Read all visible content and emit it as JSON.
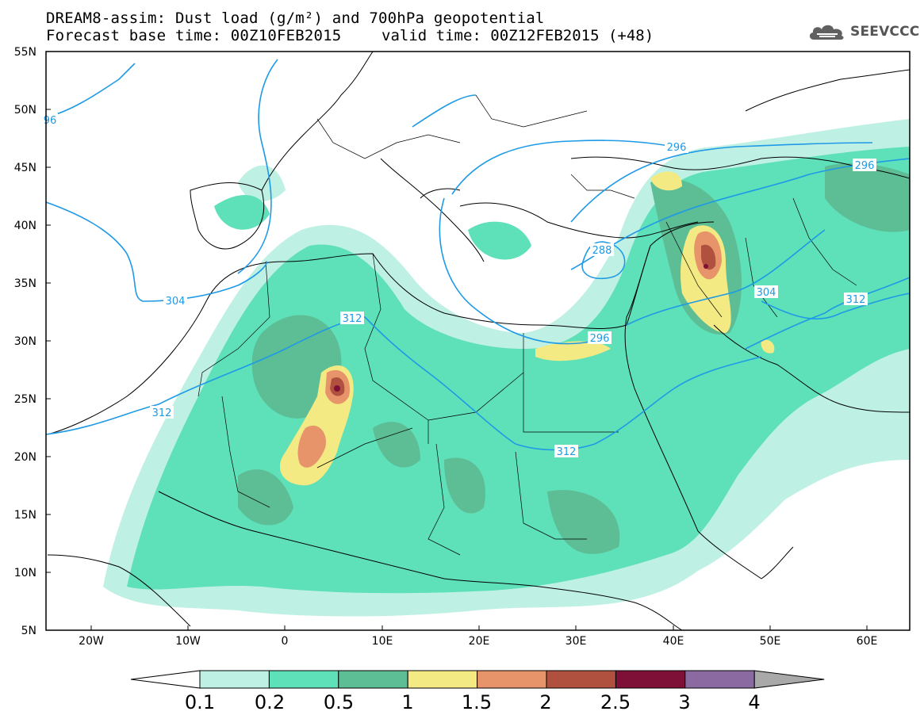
{
  "header": {
    "title_line1": "DREAM8-assim: Dust load (g/m²) and 700hPa geopotential",
    "title_line2_left": "Forecast base time: 00Z10FEB2015",
    "title_line2_right": "valid time: 00Z12FEB2015 (+48)",
    "logo_text": "SEEVCCC"
  },
  "map": {
    "lat_labels": [
      "55N",
      "50N",
      "45N",
      "40N",
      "35N",
      "30N",
      "25N",
      "20N",
      "15N",
      "10N",
      "5N"
    ],
    "lon_labels": [
      "20W",
      "10W",
      "0",
      "10E",
      "20E",
      "30E",
      "40E",
      "50E",
      "60E"
    ],
    "contour_labels": [
      "96",
      "296",
      "296",
      "288",
      "296",
      "304",
      "304",
      "312",
      "312",
      "312",
      "312"
    ]
  },
  "colorbar": {
    "colors": [
      "#ffffff",
      "#bff0e4",
      "#5ee0b8",
      "#5dbd95",
      "#f4ea84",
      "#e8946a",
      "#b0503f",
      "#7e0f36",
      "#8a6aa0",
      "#a9a9a9"
    ],
    "labels": [
      "0.1",
      "0.2",
      "0.5",
      "1",
      "1.5",
      "2",
      "2.5",
      "3",
      "4"
    ]
  },
  "colors": {
    "contour_line": "#1e9ae6",
    "coastline": "#000000"
  }
}
